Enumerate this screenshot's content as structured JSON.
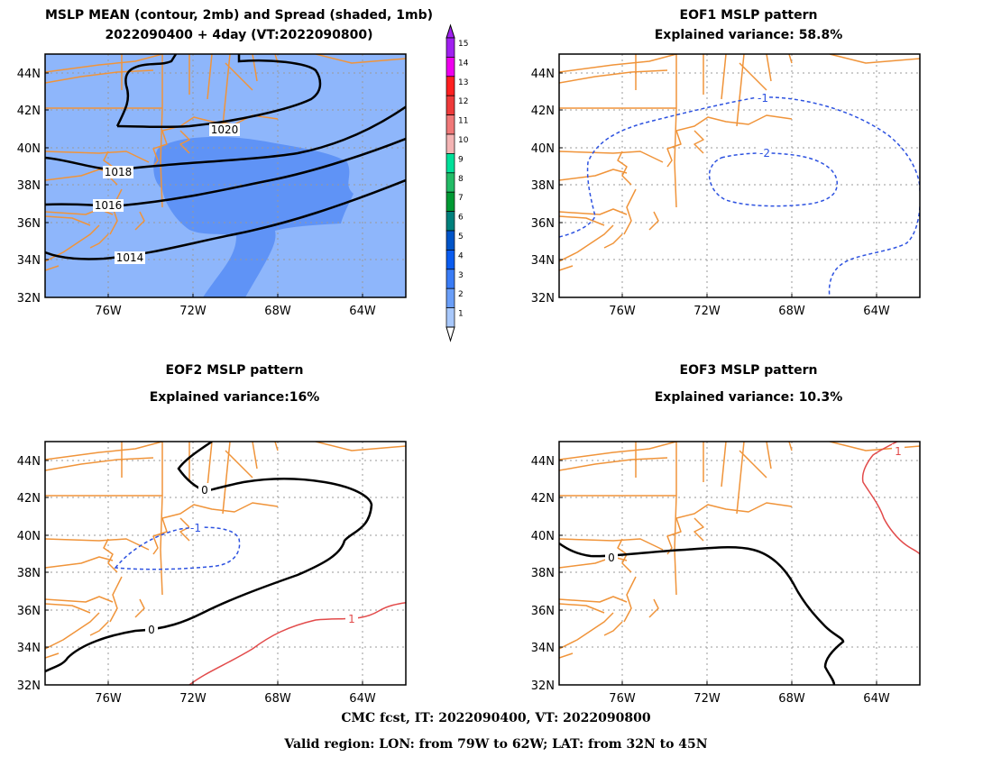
{
  "colors": {
    "coast": "#f0943a",
    "grid": "#9a9a9a",
    "spread_light": "#8eb6fb",
    "spread_mid": "#5f93f6",
    "contour_black": "#000000",
    "contour_negative": "#2d52e0",
    "contour_positive": "#e24a4a"
  },
  "panels": [
    {
      "id": "mean",
      "title_line1": "MSLP MEAN (contour, 2mb) and Spread (shaded, 1mb)",
      "title_line2": "2022090400 + 4day (VT:2022090800)",
      "contour_labels": [
        "1020",
        "1018",
        "1016",
        "1014"
      ]
    },
    {
      "id": "eof1",
      "title_line1": "EOF1 MSLP pattern",
      "title_line2": "Explained variance: 58.8%",
      "contour_labels": [
        "-1",
        "-2"
      ]
    },
    {
      "id": "eof2",
      "title_line1": "EOF2 MSLP pattern",
      "title_line2": "Explained variance:16%",
      "contour_labels": [
        "0",
        "-1",
        "1"
      ]
    },
    {
      "id": "eof3",
      "title_line1": "EOF3 MSLP pattern",
      "title_line2": "Explained variance: 10.3%",
      "contour_labels": [
        "0",
        "1"
      ]
    }
  ],
  "axes": {
    "lat_labels": [
      "44N",
      "42N",
      "40N",
      "38N",
      "36N",
      "34N",
      "32N"
    ],
    "lon_labels": [
      "76W",
      "72W",
      "68W",
      "64W"
    ]
  },
  "colorbar": {
    "labels": [
      "15",
      "14",
      "13",
      "12",
      "11",
      "10",
      "9",
      "8",
      "7",
      "6",
      "5",
      "4",
      "3",
      "2",
      "1"
    ],
    "colors": [
      "#a020f0",
      "#ee00ee",
      "#ff2020",
      "#ee3a3a",
      "#f07878",
      "#f4b4b4",
      "#00e09a",
      "#22bb66",
      "#009933",
      "#00807c",
      "#0054c8",
      "#0a5cf0",
      "#3a7cf6",
      "#6a9ef8",
      "#a8c8fb"
    ]
  },
  "footer": {
    "line1": "CMC fcst, IT: 2022090400, VT: 2022090800",
    "line2": "Valid region: LON: from 79W to 62W; LAT: from 32N to 45N"
  }
}
